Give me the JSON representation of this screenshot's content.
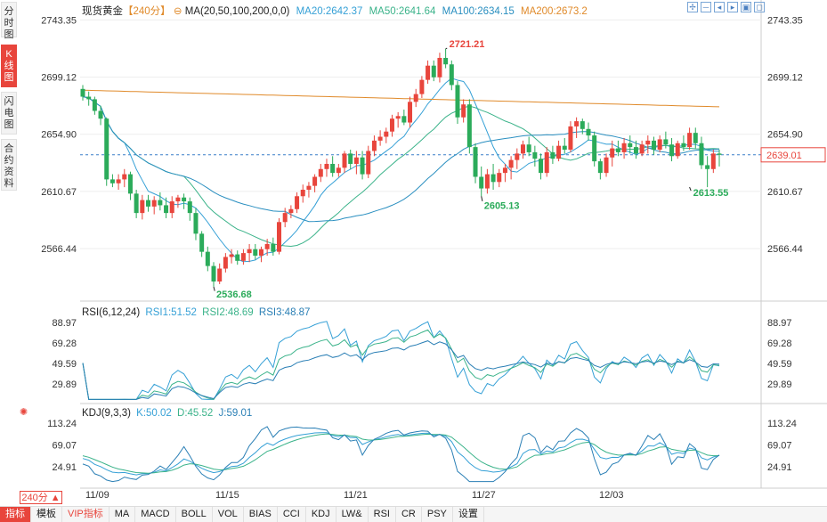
{
  "side_tabs": [
    {
      "label": "分时图"
    },
    {
      "label": "K线图"
    },
    {
      "label": "闪电图"
    },
    {
      "label": "合约资料"
    }
  ],
  "header": {
    "symbol": "现货黄金",
    "period": "【240分】",
    "ma_label": "MA(20,50,100,200,0,0)",
    "ma20": "MA20:2642.37",
    "ma50": "MA50:2641.64",
    "ma100": "MA100:2634.15",
    "ma200": "MA200:2673.2"
  },
  "rsi_header": {
    "title": "RSI(6,12,24)",
    "rsi1": "RSI1:51.52",
    "rsi2": "RSI2:48.69",
    "rsi3": "RSI3:48.87"
  },
  "kdj_header": {
    "title": "KDJ(9,3,3)",
    "k": "K:50.02",
    "d": "D:45.52",
    "j": "J:59.01"
  },
  "price_labels": [
    "2743.35",
    "2699.12",
    "2654.90",
    "2610.67",
    "2566.44"
  ],
  "rsi_labels": [
    "88.97",
    "69.28",
    "49.59",
    "29.89"
  ],
  "kdj_labels": [
    "113.24",
    "69.07",
    "24.91"
  ],
  "current_price": "2639.01",
  "annotations": {
    "high": "2721.21",
    "low": "2536.68",
    "mid_low": "2605.13",
    "right_low": "2613.55"
  },
  "dates": [
    "11/09",
    "11/15",
    "11/21",
    "11/27",
    "12/03"
  ],
  "period_button": "240分 ▲",
  "bottom_tabs": [
    "指标",
    "模板",
    "VIP指标",
    "MA",
    "MACD",
    "BOLL",
    "VOL",
    "BIAS",
    "CCI",
    "KDJ",
    "LW&",
    "RSI",
    "CR",
    "PSY",
    "设置"
  ],
  "colors": {
    "up": "#e8453c",
    "down": "#2bab5a",
    "ma20": "#35a0d6",
    "ma50": "#3bb38a",
    "ma100": "#2a8fc0",
    "ma200": "#e08a2a",
    "rsi1": "#35a0d6",
    "rsi2": "#3bb38a",
    "rsi3": "#2a7fb5"
  },
  "icons": [
    "zoom-in-icon",
    "zoom-out-icon",
    "left-icon",
    "right-icon",
    "fullscreen-icon",
    "restore-icon"
  ],
  "chart_data": {
    "type": "candlestick",
    "price_range": [
      2530,
      2745
    ],
    "candles": [
      [
        2690,
        2693,
        2681,
        2684
      ],
      [
        2684,
        2688,
        2677,
        2682
      ],
      [
        2682,
        2684,
        2670,
        2673
      ],
      [
        2673,
        2677,
        2662,
        2667
      ],
      [
        2667,
        2668,
        2615,
        2620
      ],
      [
        2620,
        2624,
        2614,
        2617
      ],
      [
        2617,
        2624,
        2612,
        2620
      ],
      [
        2620,
        2628,
        2614,
        2624
      ],
      [
        2624,
        2626,
        2604,
        2609
      ],
      [
        2609,
        2612,
        2590,
        2594
      ],
      [
        2594,
        2608,
        2589,
        2604
      ],
      [
        2604,
        2608,
        2595,
        2599
      ],
      [
        2599,
        2607,
        2593,
        2604
      ],
      [
        2604,
        2610,
        2596,
        2600
      ],
      [
        2600,
        2606,
        2590,
        2594
      ],
      [
        2594,
        2607,
        2590,
        2603
      ],
      [
        2603,
        2608,
        2598,
        2606
      ],
      [
        2606,
        2609,
        2597,
        2603
      ],
      [
        2603,
        2606,
        2588,
        2594
      ],
      [
        2594,
        2598,
        2573,
        2578
      ],
      [
        2578,
        2580,
        2560,
        2564
      ],
      [
        2564,
        2568,
        2549,
        2553
      ],
      [
        2553,
        2556,
        2537,
        2541
      ],
      [
        2541,
        2555,
        2539,
        2551
      ],
      [
        2551,
        2563,
        2548,
        2560
      ],
      [
        2560,
        2566,
        2555,
        2562
      ],
      [
        2562,
        2565,
        2554,
        2557
      ],
      [
        2557,
        2566,
        2554,
        2563
      ],
      [
        2563,
        2570,
        2556,
        2566
      ],
      [
        2566,
        2570,
        2558,
        2561
      ],
      [
        2561,
        2568,
        2556,
        2566
      ],
      [
        2566,
        2574,
        2561,
        2570
      ],
      [
        2570,
        2575,
        2561,
        2564
      ],
      [
        2564,
        2590,
        2562,
        2587
      ],
      [
        2587,
        2598,
        2583,
        2594
      ],
      [
        2594,
        2600,
        2590,
        2597
      ],
      [
        2597,
        2610,
        2594,
        2607
      ],
      [
        2607,
        2616,
        2602,
        2612
      ],
      [
        2612,
        2618,
        2606,
        2615
      ],
      [
        2615,
        2624,
        2610,
        2622
      ],
      [
        2622,
        2632,
        2618,
        2628
      ],
      [
        2628,
        2636,
        2622,
        2632
      ],
      [
        2632,
        2638,
        2622,
        2625
      ],
      [
        2625,
        2632,
        2622,
        2629
      ],
      [
        2629,
        2642,
        2625,
        2640
      ],
      [
        2640,
        2643,
        2628,
        2632
      ],
      [
        2632,
        2642,
        2624,
        2637
      ],
      [
        2637,
        2642,
        2620,
        2624
      ],
      [
        2624,
        2646,
        2621,
        2642
      ],
      [
        2642,
        2654,
        2638,
        2650
      ],
      [
        2650,
        2658,
        2646,
        2653
      ],
      [
        2653,
        2660,
        2648,
        2657
      ],
      [
        2657,
        2670,
        2653,
        2667
      ],
      [
        2667,
        2672,
        2660,
        2669
      ],
      [
        2669,
        2674,
        2662,
        2664
      ],
      [
        2664,
        2684,
        2660,
        2680
      ],
      [
        2680,
        2690,
        2676,
        2686
      ],
      [
        2686,
        2700,
        2683,
        2697
      ],
      [
        2697,
        2712,
        2694,
        2708
      ],
      [
        2708,
        2712,
        2696,
        2699
      ],
      [
        2699,
        2718,
        2695,
        2714
      ],
      [
        2714,
        2721,
        2706,
        2709
      ],
      [
        2709,
        2712,
        2689,
        2693
      ],
      [
        2693,
        2696,
        2663,
        2668
      ],
      [
        2668,
        2682,
        2664,
        2678
      ],
      [
        2678,
        2682,
        2640,
        2645
      ],
      [
        2645,
        2648,
        2617,
        2622
      ],
      [
        2622,
        2630,
        2607,
        2613
      ],
      [
        2613,
        2628,
        2609,
        2624
      ],
      [
        2624,
        2632,
        2612,
        2618
      ],
      [
        2618,
        2628,
        2614,
        2625
      ],
      [
        2625,
        2632,
        2618,
        2629
      ],
      [
        2629,
        2638,
        2620,
        2635
      ],
      [
        2635,
        2644,
        2628,
        2640
      ],
      [
        2640,
        2650,
        2636,
        2647
      ],
      [
        2647,
        2653,
        2638,
        2641
      ],
      [
        2641,
        2646,
        2630,
        2636
      ],
      [
        2636,
        2640,
        2620,
        2625
      ],
      [
        2625,
        2645,
        2622,
        2641
      ],
      [
        2641,
        2646,
        2632,
        2636
      ],
      [
        2636,
        2650,
        2634,
        2646
      ],
      [
        2646,
        2652,
        2640,
        2643
      ],
      [
        2643,
        2665,
        2641,
        2661
      ],
      [
        2661,
        2668,
        2652,
        2665
      ],
      [
        2665,
        2667,
        2655,
        2659
      ],
      [
        2659,
        2664,
        2650,
        2654
      ],
      [
        2654,
        2657,
        2630,
        2634
      ],
      [
        2634,
        2636,
        2620,
        2625
      ],
      [
        2625,
        2640,
        2622,
        2637
      ],
      [
        2637,
        2650,
        2630,
        2644
      ],
      [
        2644,
        2650,
        2638,
        2641
      ],
      [
        2641,
        2652,
        2636,
        2648
      ],
      [
        2648,
        2654,
        2640,
        2645
      ],
      [
        2645,
        2650,
        2636,
        2640
      ],
      [
        2640,
        2650,
        2638,
        2647
      ],
      [
        2647,
        2654,
        2640,
        2650
      ],
      [
        2650,
        2653,
        2639,
        2643
      ],
      [
        2643,
        2654,
        2641,
        2651
      ],
      [
        2651,
        2657,
        2644,
        2647
      ],
      [
        2647,
        2652,
        2634,
        2638
      ],
      [
        2638,
        2650,
        2636,
        2648
      ],
      [
        2648,
        2654,
        2642,
        2645
      ],
      [
        2645,
        2660,
        2643,
        2656
      ],
      [
        2656,
        2660,
        2644,
        2648
      ],
      [
        2648,
        2653,
        2628,
        2631
      ],
      [
        2631,
        2638,
        2614,
        2628
      ],
      [
        2628,
        2643,
        2625,
        2640
      ],
      [
        2640,
        2643,
        2630,
        2639
      ]
    ]
  }
}
